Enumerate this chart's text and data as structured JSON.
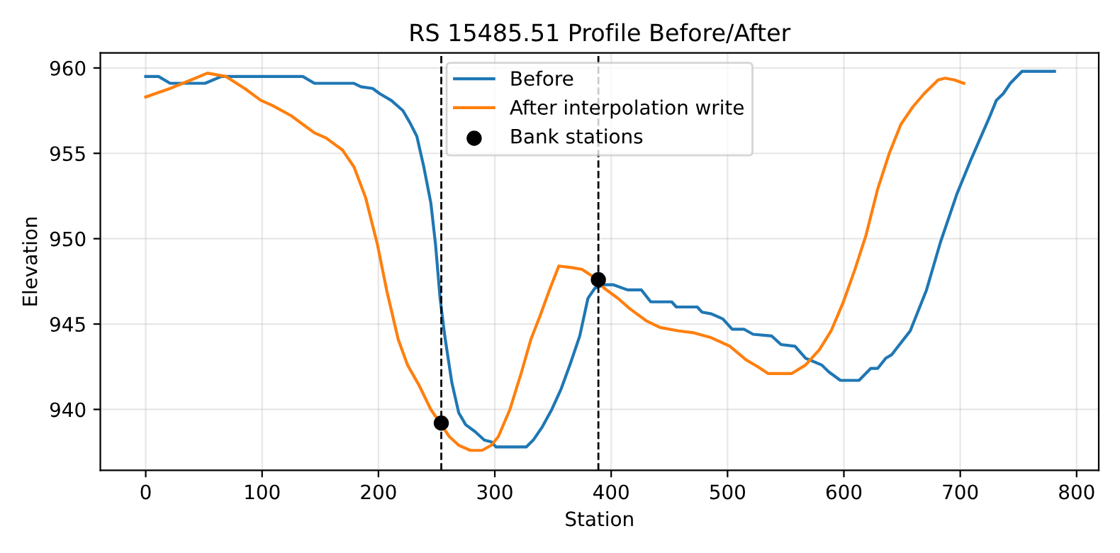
{
  "chart_data": {
    "type": "line",
    "title": "RS 15485.51 Profile Before/After",
    "xlabel": "Station",
    "ylabel": "Elevation",
    "xlim": [
      -39,
      819
    ],
    "ylim": [
      936.43,
      960.88
    ],
    "xticks": [
      0,
      100,
      200,
      300,
      400,
      500,
      600,
      700,
      800
    ],
    "yticks": [
      940,
      945,
      950,
      955,
      960
    ],
    "grid": true,
    "legend": "top",
    "line_style": "solid",
    "marker": "none",
    "series": [
      {
        "name": "Before",
        "color": "#1f77b4",
        "x": [
          0,
          11,
          21,
          51,
          65,
          135,
          145,
          179,
          185,
          195,
          201,
          211,
          221,
          227,
          233,
          239,
          245,
          249,
          253,
          257,
          263,
          269,
          275,
          283,
          291,
          297,
          301,
          327,
          333,
          341,
          349,
          357,
          365,
          373,
          380,
          386,
          394,
          402,
          414,
          426,
          434,
          452,
          456,
          474,
          478,
          486,
          496,
          504,
          514,
          522,
          538,
          546,
          558,
          567,
          581,
          587,
          597,
          613,
          623,
          629,
          636,
          641,
          657,
          671,
          683,
          697,
          709,
          725,
          731,
          737,
          743,
          753,
          781
        ],
        "values": [
          959.5,
          959.5,
          959.1,
          959.1,
          959.5,
          959.5,
          959.1,
          959.1,
          958.9,
          958.8,
          958.5,
          958.1,
          957.5,
          956.8,
          956.0,
          954.2,
          952.1,
          949.7,
          946.5,
          944.3,
          941.6,
          939.8,
          939.1,
          938.7,
          938.2,
          938.1,
          937.8,
          937.8,
          938.2,
          939.0,
          940.0,
          941.2,
          942.7,
          944.3,
          946.5,
          947.1,
          947.3,
          947.3,
          947.0,
          947.0,
          946.3,
          946.3,
          946.0,
          946.0,
          945.7,
          945.6,
          945.3,
          944.7,
          944.7,
          944.4,
          944.3,
          943.8,
          943.7,
          943.0,
          942.6,
          942.2,
          941.7,
          941.7,
          942.4,
          942.4,
          943.0,
          943.2,
          944.6,
          947.0,
          949.8,
          952.6,
          954.6,
          957.1,
          958.1,
          958.5,
          959.1,
          959.8,
          959.8
        ]
      },
      {
        "name": "After interpolation write",
        "color": "#ff7f0e",
        "x": [
          0,
          21,
          39,
          53,
          69,
          85,
          99,
          109,
          125,
          137,
          145,
          155,
          169,
          179,
          189,
          199,
          207,
          217,
          225,
          235,
          245,
          253,
          261,
          269,
          279,
          289,
          297,
          303,
          313,
          323,
          331,
          339,
          347,
          355,
          367,
          375,
          384,
          394,
          406,
          416,
          430,
          442,
          458,
          470,
          486,
          502,
          516,
          526,
          535,
          555,
          567,
          579,
          589,
          599,
          609,
          619,
          629,
          639,
          649,
          659,
          669,
          681,
          687,
          695,
          703
        ],
        "values": [
          958.3,
          958.8,
          959.3,
          959.7,
          959.5,
          958.8,
          958.1,
          957.8,
          957.2,
          956.6,
          956.2,
          955.9,
          955.2,
          954.2,
          952.4,
          949.7,
          947.0,
          944.1,
          942.6,
          941.4,
          940.0,
          939.2,
          938.4,
          937.9,
          937.6,
          937.6,
          937.9,
          938.4,
          940.0,
          942.2,
          944.1,
          945.5,
          947.0,
          948.4,
          948.3,
          948.2,
          947.8,
          947.1,
          946.5,
          945.9,
          945.2,
          944.8,
          944.6,
          944.5,
          944.2,
          943.7,
          942.9,
          942.5,
          942.1,
          942.1,
          942.6,
          943.5,
          944.6,
          946.2,
          948.1,
          950.2,
          952.9,
          955.0,
          956.7,
          957.7,
          958.5,
          959.3,
          959.4,
          959.3,
          959.1
        ]
      },
      {
        "name": "Bank stations",
        "color": "#000000",
        "type": "scatter",
        "marker": "circle",
        "x": [
          254,
          389
        ],
        "values": [
          939.2,
          947.6
        ]
      }
    ],
    "ref_lines": [
      {
        "axis": "x",
        "value": 254,
        "color": "#000000",
        "line_style": "dashed"
      },
      {
        "axis": "x",
        "value": 389,
        "color": "#000000",
        "line_style": "dashed"
      }
    ]
  }
}
